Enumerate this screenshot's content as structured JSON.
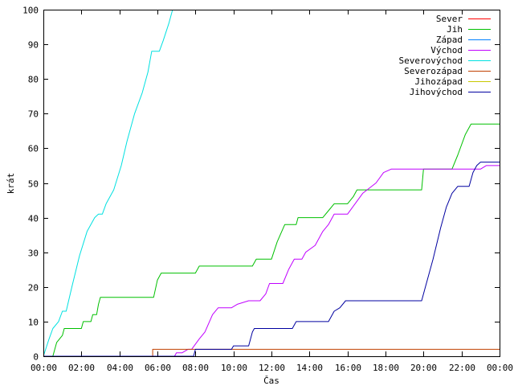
{
  "chart_data": {
    "type": "line",
    "title": "",
    "xlabel": "Čas",
    "ylabel": "krát",
    "xlim": [
      0,
      24
    ],
    "ylim": [
      0,
      100
    ],
    "grid": false,
    "legend_position": "top-right",
    "x_ticks": [
      "00:00",
      "02:00",
      "04:00",
      "06:00",
      "08:00",
      "10:00",
      "12:00",
      "14:00",
      "16:00",
      "18:00",
      "20:00",
      "22:00",
      "00:00"
    ],
    "y_ticks": [
      0,
      10,
      20,
      30,
      40,
      50,
      60,
      70,
      80,
      90,
      100
    ],
    "series": [
      {
        "name": "Sever",
        "color": "#ff0000",
        "points": []
      },
      {
        "name": "Jih",
        "color": "#00c000",
        "points": [
          [
            0,
            0
          ],
          [
            0.5,
            0
          ],
          [
            0.6,
            2
          ],
          [
            0.7,
            4
          ],
          [
            1.0,
            6
          ],
          [
            1.1,
            8
          ],
          [
            2.0,
            8
          ],
          [
            2.1,
            10
          ],
          [
            2.5,
            10
          ],
          [
            2.6,
            12
          ],
          [
            2.8,
            12
          ],
          [
            2.9,
            15
          ],
          [
            3.0,
            17
          ],
          [
            5.8,
            17
          ],
          [
            6.0,
            22
          ],
          [
            6.2,
            24
          ],
          [
            8.0,
            24
          ],
          [
            8.2,
            26
          ],
          [
            11.0,
            26
          ],
          [
            11.2,
            28
          ],
          [
            12.0,
            28
          ],
          [
            12.3,
            33
          ],
          [
            12.7,
            38
          ],
          [
            13.3,
            38
          ],
          [
            13.4,
            40
          ],
          [
            14.7,
            40
          ],
          [
            15.0,
            42
          ],
          [
            15.3,
            44
          ],
          [
            16.0,
            44
          ],
          [
            16.3,
            46
          ],
          [
            16.5,
            48
          ],
          [
            19.9,
            48
          ],
          [
            20.0,
            54
          ],
          [
            21.5,
            54
          ],
          [
            21.8,
            58
          ],
          [
            22.2,
            64
          ],
          [
            22.5,
            67
          ],
          [
            24,
            67
          ]
        ]
      },
      {
        "name": "Západ",
        "color": "#0080ff",
        "points": []
      },
      {
        "name": "Východ",
        "color": "#c000ff",
        "points": [
          [
            0,
            0
          ],
          [
            6.9,
            0
          ],
          [
            7.0,
            1
          ],
          [
            7.3,
            1
          ],
          [
            7.6,
            2
          ],
          [
            7.8,
            2
          ],
          [
            8.2,
            5
          ],
          [
            8.5,
            7
          ],
          [
            8.9,
            12
          ],
          [
            9.2,
            14
          ],
          [
            9.9,
            14
          ],
          [
            10.2,
            15
          ],
          [
            10.8,
            16
          ],
          [
            11.4,
            16
          ],
          [
            11.7,
            18
          ],
          [
            11.9,
            21
          ],
          [
            12.6,
            21
          ],
          [
            12.9,
            25
          ],
          [
            13.2,
            28
          ],
          [
            13.6,
            28
          ],
          [
            13.8,
            30
          ],
          [
            14.3,
            32
          ],
          [
            14.7,
            36
          ],
          [
            15.0,
            38
          ],
          [
            15.3,
            41
          ],
          [
            16.0,
            41
          ],
          [
            16.4,
            44
          ],
          [
            16.8,
            47
          ],
          [
            17.5,
            50
          ],
          [
            17.9,
            53
          ],
          [
            18.3,
            54
          ],
          [
            23.0,
            54
          ],
          [
            23.3,
            55
          ],
          [
            24,
            55
          ]
        ]
      },
      {
        "name": "Severovýchod",
        "color": "#00e0e0",
        "points": [
          [
            0,
            0
          ],
          [
            0.3,
            5
          ],
          [
            0.5,
            8
          ],
          [
            0.8,
            10
          ],
          [
            1.0,
            13
          ],
          [
            1.2,
            13
          ],
          [
            1.5,
            20
          ],
          [
            1.9,
            29
          ],
          [
            2.3,
            36
          ],
          [
            2.7,
            40
          ],
          [
            2.9,
            41
          ],
          [
            3.1,
            41
          ],
          [
            3.3,
            44
          ],
          [
            3.7,
            48
          ],
          [
            4.1,
            55
          ],
          [
            4.4,
            62
          ],
          [
            4.8,
            70
          ],
          [
            5.2,
            76
          ],
          [
            5.5,
            82
          ],
          [
            5.7,
            88
          ],
          [
            6.1,
            88
          ],
          [
            6.3,
            91
          ],
          [
            6.6,
            96
          ],
          [
            6.8,
            100
          ]
        ]
      },
      {
        "name": "Severozápad",
        "color": "#c04000",
        "points": [
          [
            0,
            0
          ],
          [
            5.75,
            0
          ],
          [
            5.75,
            2
          ],
          [
            24,
            2
          ]
        ]
      },
      {
        "name": "Jihozápad",
        "color": "#c8c800",
        "points": []
      },
      {
        "name": "Jihovýchod",
        "color": "#0000a0",
        "points": [
          [
            0,
            0
          ],
          [
            7.9,
            0
          ],
          [
            8.0,
            2
          ],
          [
            9.9,
            2
          ],
          [
            10.0,
            3
          ],
          [
            10.8,
            3
          ],
          [
            11.0,
            7
          ],
          [
            11.1,
            8
          ],
          [
            13.1,
            8
          ],
          [
            13.3,
            10
          ],
          [
            15.0,
            10
          ],
          [
            15.3,
            13
          ],
          [
            15.6,
            14
          ],
          [
            15.9,
            16
          ],
          [
            19.9,
            16
          ],
          [
            20.1,
            20
          ],
          [
            20.5,
            28
          ],
          [
            20.9,
            37
          ],
          [
            21.2,
            43
          ],
          [
            21.5,
            47
          ],
          [
            21.8,
            49
          ],
          [
            22.4,
            49
          ],
          [
            22.6,
            53
          ],
          [
            22.8,
            55
          ],
          [
            23.0,
            56
          ],
          [
            24,
            56
          ]
        ]
      }
    ]
  }
}
